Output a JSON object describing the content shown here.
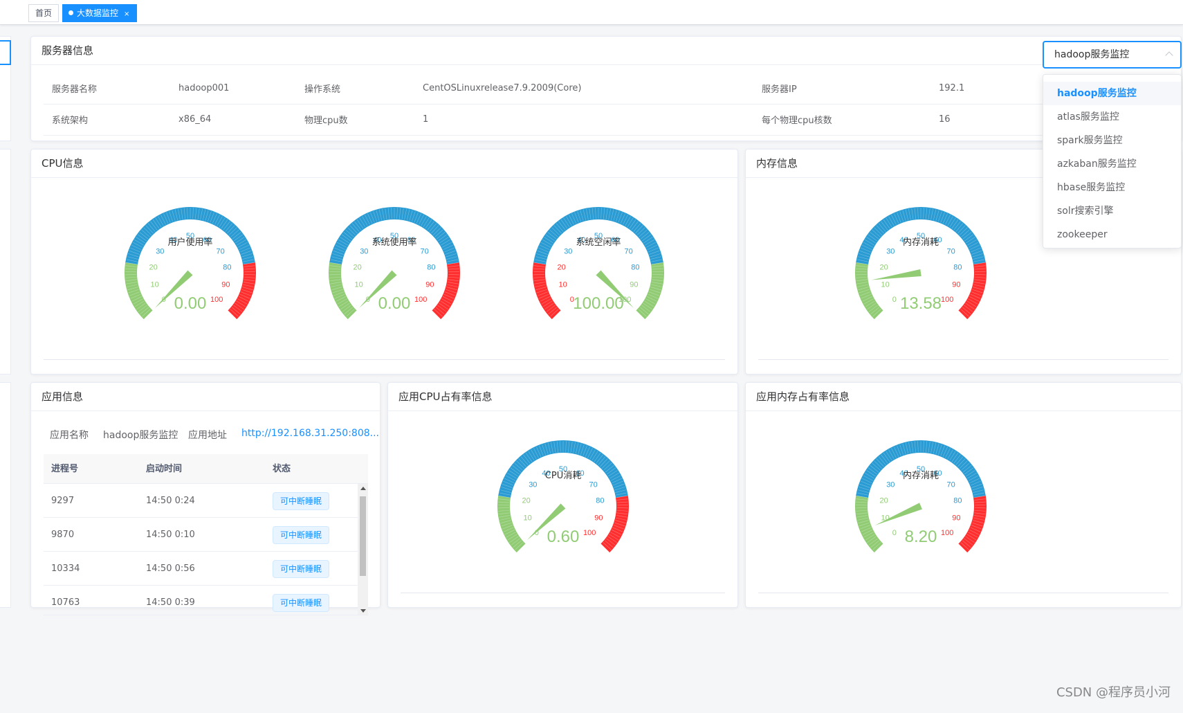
{
  "tabs": [
    {
      "label": "首页"
    },
    {
      "label": "大数据监控",
      "close": "×"
    }
  ],
  "server": {
    "title": "服务器信息",
    "rows": [
      [
        "服务器名称",
        "hadoop001",
        "操作系统",
        "CentOSLinuxrelease7.9.2009(Core)",
        "服务器IP",
        "192.1"
      ],
      [
        "系统架构",
        "x86_64",
        "物理cpu数",
        "1",
        "每个物理cpu核数",
        "16"
      ]
    ]
  },
  "select": {
    "value": "hadoop服务监控",
    "options": [
      "hadoop服务监控",
      "atlas服务监控",
      "spark服务监控",
      "azkaban服务监控",
      "hbase服务监控",
      "solr搜索引擎",
      "zookeeper"
    ]
  },
  "cpu": {
    "title": "CPU信息",
    "gauges": [
      {
        "name": "用户使用率",
        "value": 0.0,
        "display": "0.00"
      },
      {
        "name": "系统使用率",
        "value": 0.0,
        "display": "0.00"
      },
      {
        "name": "系统空闲率",
        "value": 100.0,
        "display": "100.00",
        "inverse": true
      }
    ]
  },
  "memory": {
    "title": "内存信息",
    "gauge": {
      "name": "内存消耗",
      "value": 13.58,
      "display": "13.58"
    }
  },
  "app": {
    "title": "应用信息",
    "name_label": "应用名称",
    "name_value": "hadoop服务监控",
    "addr_label": "应用地址",
    "addr_value": "http://192.168.31.250:808...",
    "columns": [
      "进程号",
      "启动时间",
      "状态"
    ],
    "rows": [
      {
        "pid": "9297",
        "time": "14:50 0:24",
        "status": "可中断睡眠"
      },
      {
        "pid": "9870",
        "time": "14:50 0:10",
        "status": "可中断睡眠"
      },
      {
        "pid": "10334",
        "time": "14:50 0:56",
        "status": "可中断睡眠"
      },
      {
        "pid": "10763",
        "time": "14:50 0:39",
        "status": "可中断睡眠"
      }
    ]
  },
  "app_cpu": {
    "title": "应用CPU占有率信息",
    "gauge": {
      "name": "CPU消耗",
      "value": 0.6,
      "display": "0.60"
    }
  },
  "app_mem": {
    "title": "应用内存占有率信息",
    "gauge": {
      "name": "内存消耗",
      "value": 8.2,
      "display": "8.20"
    }
  },
  "gauge_style": {
    "ticks": [
      "0",
      "10",
      "20",
      "30",
      "40",
      "50",
      "60",
      "70",
      "80",
      "90",
      "100"
    ],
    "colors": {
      "green": "#91cc75",
      "blue": "#2a9bd3",
      "red": "#ff2f2f",
      "value": "#91cc75"
    }
  },
  "watermark": "CSDN @程序员小河"
}
